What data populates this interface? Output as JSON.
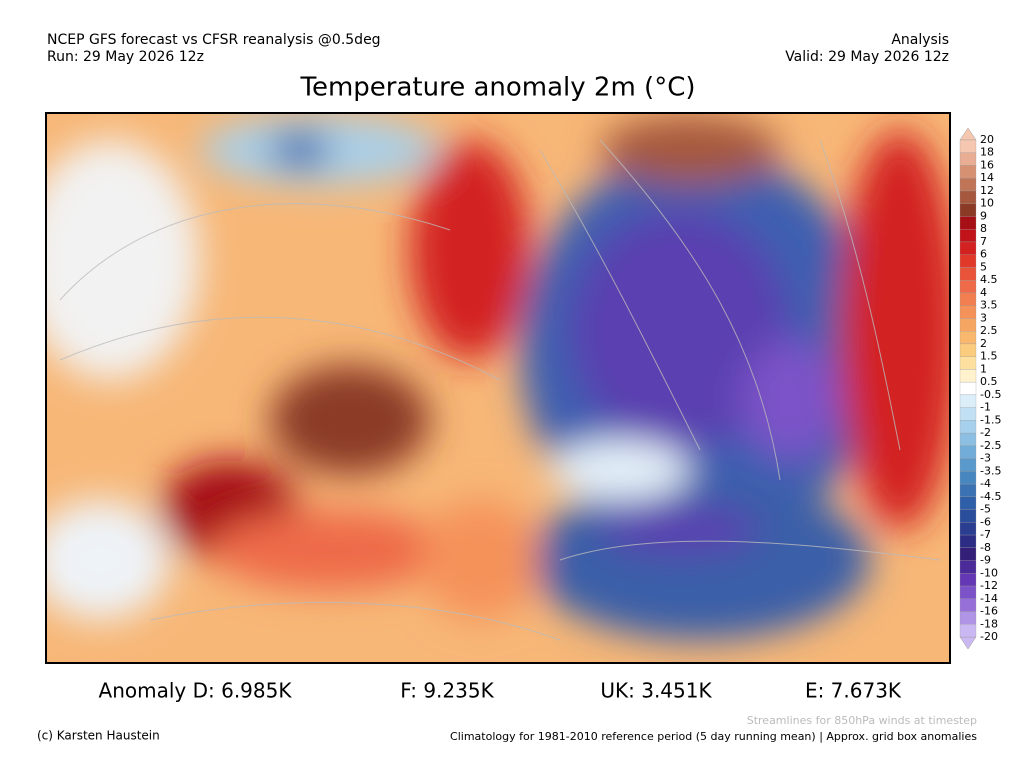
{
  "header": {
    "left_line1": "NCEP GFS forecast vs CFSR reanalysis @0.5deg",
    "left_line2": "Run: 29 May 2026 12z",
    "right_line1": "Analysis",
    "right_line2": "Valid: 29 May 2026 12z",
    "title": "Temperature anomaly 2m (°C)"
  },
  "colorbar": {
    "levels": [
      20,
      18,
      16,
      14,
      12,
      10,
      9,
      8,
      7,
      6,
      5,
      4.5,
      4,
      3.5,
      3,
      2.5,
      2,
      1.5,
      1,
      0.5,
      -0.5,
      -1,
      -1.5,
      -2,
      -2.5,
      -3,
      -3.5,
      -4,
      -4.5,
      -5,
      -6,
      -7,
      -8,
      -9,
      -10,
      -12,
      -14,
      -16,
      -18,
      -20
    ],
    "colors": [
      "#f5c6b0",
      "#e8ad92",
      "#d69173",
      "#c07557",
      "#a5583e",
      "#8b3a26",
      "#a50f15",
      "#c0141a",
      "#d32020",
      "#e0392a",
      "#e8533a",
      "#ee6a48",
      "#f27f50",
      "#f5925a",
      "#f7a562",
      "#f9b86e",
      "#fbcb7e",
      "#fde0a0",
      "#fff2cc",
      "#ffffff",
      "#dceefa",
      "#c2e0f4",
      "#a6d0ec",
      "#8cbfe2",
      "#72acd8",
      "#5a99cc",
      "#4886c0",
      "#3a72b4",
      "#2f5fa8",
      "#2a4e9c",
      "#2b3d90",
      "#2c2c84",
      "#341f78",
      "#4b2a9a",
      "#6438b4",
      "#7c52c8",
      "#9670d8",
      "#b094e6",
      "#cab8f2"
    ]
  },
  "stats": [
    "Anomaly D: 6.985K",
    "F: 9.235K",
    "UK: 3.451K",
    "E: 7.673K"
  ],
  "footer": {
    "credit": "(c) Karsten Haustein",
    "streamlines": "Streamlines for 850hPa winds at timestep",
    "climatology": "Climatology for 1981-2010 reference period (5 day running mean) | Approx. grid box anomalies"
  }
}
